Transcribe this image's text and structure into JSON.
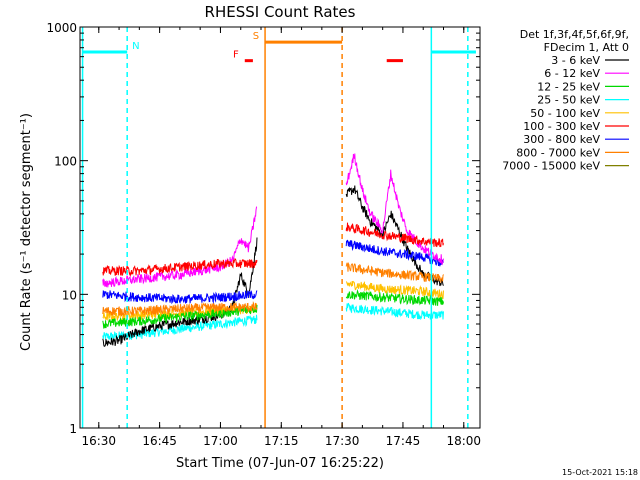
{
  "chart_data": {
    "type": "line",
    "title": "RHESSI Count Rates",
    "xlabel": "Start Time (07-Jun-07 16:25:22)",
    "ylabel": "Count Rate (s⁻¹ detector segment⁻¹)",
    "yscale": "log",
    "ylim": [
      1,
      1000
    ],
    "xlim": [
      "16:25:22",
      "18:04:00"
    ],
    "x_ticks": [
      "16:30",
      "16:45",
      "17:00",
      "17:15",
      "17:30",
      "17:45",
      "18:00"
    ],
    "y_ticks": [
      "1",
      "10",
      "100",
      "1000"
    ],
    "grid": false,
    "legend_position": "right-outside",
    "legend_header": [
      "Det 1f,3f,4f,5f,6f,9f,",
      "FDecim 1, Att 0"
    ],
    "timestamp": "15-Oct-2021 15:18",
    "series": [
      {
        "name": "3 - 6 keV",
        "color": "#000000",
        "segments": [
          {
            "x": [
              "16:31",
              "16:35",
              "16:40",
              "16:45",
              "16:50",
              "16:55",
              "17:00",
              "17:03",
              "17:05",
              "17:07",
              "17:09"
            ],
            "y": [
              4.3,
              4.5,
              5.3,
              5.8,
              6.2,
              6.5,
              7.0,
              8.0,
              14.0,
              10.0,
              25.0
            ]
          },
          {
            "x": [
              "17:31",
              "17:33",
              "17:35",
              "17:37",
              "17:40",
              "17:42",
              "17:44",
              "17:46",
              "17:50",
              "17:55"
            ],
            "y": [
              55,
              62,
              45,
              35,
              28,
              40,
              30,
              22,
              14,
              12
            ]
          }
        ]
      },
      {
        "name": "6 - 12 keV",
        "color": "#ff00ff",
        "segments": [
          {
            "x": [
              "16:31",
              "16:35",
              "16:40",
              "16:45",
              "16:50",
              "16:55",
              "17:00",
              "17:03",
              "17:05",
              "17:07",
              "17:09"
            ],
            "y": [
              12,
              12.5,
              13,
              13.5,
              14,
              15,
              16,
              18,
              26,
              22,
              45
            ]
          },
          {
            "x": [
              "17:31",
              "17:33",
              "17:35",
              "17:37",
              "17:40",
              "17:42",
              "17:44",
              "17:46",
              "17:50",
              "17:55"
            ],
            "y": [
              65,
              110,
              60,
              40,
              30,
              80,
              45,
              30,
              22,
              18
            ]
          }
        ]
      },
      {
        "name": "12 - 25 keV",
        "color": "#00d800",
        "segments": [
          {
            "x": [
              "16:31",
              "16:40",
              "16:50",
              "17:00",
              "17:09"
            ],
            "y": [
              6.0,
              6.3,
              6.8,
              7.2,
              7.8
            ]
          },
          {
            "x": [
              "17:31",
              "17:40",
              "17:50",
              "17:55"
            ],
            "y": [
              10,
              9.5,
              9.0,
              8.8
            ]
          }
        ]
      },
      {
        "name": "25 - 50 keV",
        "color": "#00ffff",
        "segments": [
          {
            "x": [
              "16:31",
              "16:40",
              "16:50",
              "17:00",
              "17:09"
            ],
            "y": [
              4.8,
              5.0,
              5.5,
              6.0,
              6.5
            ]
          },
          {
            "x": [
              "17:31",
              "17:40",
              "17:50",
              "17:55"
            ],
            "y": [
              8.0,
              7.5,
              7.0,
              7.0
            ]
          }
        ]
      },
      {
        "name": "50 - 100 keV",
        "color": "#ffc000",
        "segments": [
          {
            "x": [
              "16:31",
              "16:40",
              "16:50",
              "17:00",
              "17:09"
            ],
            "y": [
              6.8,
              7.0,
              7.2,
              7.5,
              7.8
            ]
          },
          {
            "x": [
              "17:31",
              "17:40",
              "17:50",
              "17:55"
            ],
            "y": [
              12,
              11,
              10.5,
              10
            ]
          }
        ]
      },
      {
        "name": "100 - 300 keV",
        "color": "#ff0000",
        "segments": [
          {
            "x": [
              "16:31",
              "16:40",
              "16:50",
              "17:00",
              "17:09"
            ],
            "y": [
              15,
              15,
              16,
              17,
              17
            ]
          },
          {
            "x": [
              "17:31",
              "17:40",
              "17:50",
              "17:55"
            ],
            "y": [
              32,
              28,
              25,
              24
            ]
          }
        ]
      },
      {
        "name": "300 - 800 keV",
        "color": "#0000ff",
        "segments": [
          {
            "x": [
              "16:31",
              "16:40",
              "16:50",
              "17:00",
              "17:09"
            ],
            "y": [
              10,
              9.5,
              9.2,
              9.5,
              10
            ]
          },
          {
            "x": [
              "17:31",
              "17:40",
              "17:50",
              "17:55"
            ],
            "y": [
              24,
              21,
              19,
              17
            ]
          }
        ]
      },
      {
        "name": "800 - 7000 keV",
        "color": "#ff8000",
        "segments": [
          {
            "x": [
              "16:31",
              "16:40",
              "16:50",
              "17:00",
              "17:09"
            ],
            "y": [
              7.5,
              7.5,
              7.8,
              8.0,
              8.0
            ]
          },
          {
            "x": [
              "17:31",
              "17:40",
              "17:50",
              "17:55"
            ],
            "y": [
              16,
              14.5,
              13.5,
              13
            ]
          }
        ]
      },
      {
        "name": "7000 - 15000 keV",
        "color": "#808000",
        "segments": []
      }
    ],
    "vertical_lines": [
      {
        "x": "16:26",
        "color": "#00ffff",
        "style": "solid"
      },
      {
        "x": "16:37",
        "color": "#00ffff",
        "style": "dashed"
      },
      {
        "x": "17:11",
        "color": "#ff8000",
        "style": "solid"
      },
      {
        "x": "17:30",
        "color": "#ff8000",
        "style": "dashed"
      },
      {
        "x": "17:52",
        "color": "#00ffff",
        "style": "solid"
      },
      {
        "x": "18:01",
        "color": "#00ffff",
        "style": "dashed"
      }
    ],
    "flag_bars": [
      {
        "label": "N",
        "color": "#00ffff",
        "x0": "16:26",
        "x1": "16:37",
        "y": 650
      },
      {
        "label": "",
        "color": "#00ffff",
        "x0": "17:52",
        "x1": "18:03",
        "y": 650
      },
      {
        "label": "S",
        "color": "#ff8000",
        "x0": "17:11",
        "x1": "17:30",
        "y": 770
      },
      {
        "label": "F",
        "color": "#ff0000",
        "x0": "17:06",
        "x1": "17:08",
        "y": 560
      },
      {
        "label": "",
        "color": "#ff0000",
        "x0": "17:41",
        "x1": "17:45",
        "y": 560
      }
    ]
  }
}
